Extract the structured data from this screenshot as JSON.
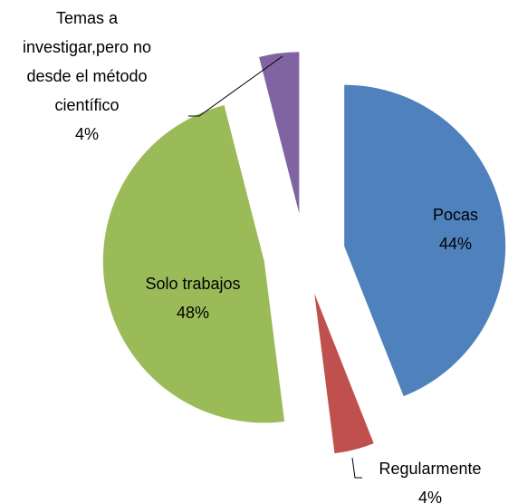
{
  "chart_data": {
    "type": "pie",
    "categories": [
      "Pocas",
      "Regularmente",
      "Solo trabajos",
      "Temas a investigar,pero no desde el método científico"
    ],
    "values": [
      44,
      4,
      48,
      4
    ],
    "value_labels": [
      "44%",
      "4%",
      "48%",
      "4%"
    ],
    "colors": [
      "#4f81bd",
      "#c0504d",
      "#9bbb59",
      "#8064a2"
    ]
  }
}
